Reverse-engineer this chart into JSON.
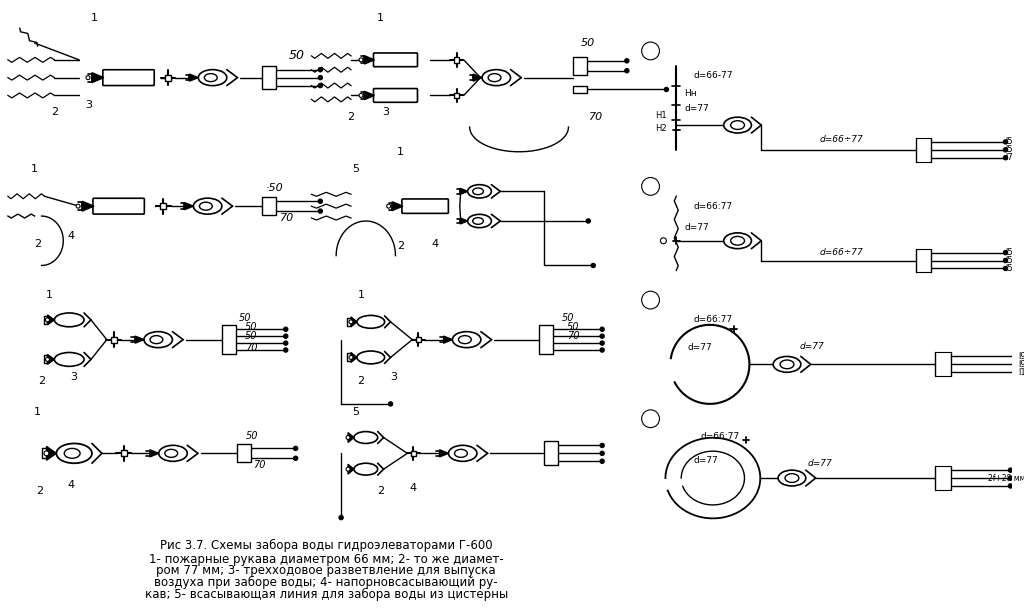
{
  "title": "Рис 3.7. Схемы забора воды гидроэлеваторами Г-600",
  "caption_line2": "1- пожарные рукава диаметром 66 мм; 2- то же диамет-",
  "caption_line3": "ром 77 мм; 3- трехходовое разветвление для выпуска",
  "caption_line4": "воздуха при заборе воды; 4- напорновсасывающий ру-",
  "caption_line5": "кав; 5- всасывающая линия для забора воды из цистерны",
  "bg_color": "#ffffff",
  "fig_width": 10.24,
  "fig_height": 6.16
}
